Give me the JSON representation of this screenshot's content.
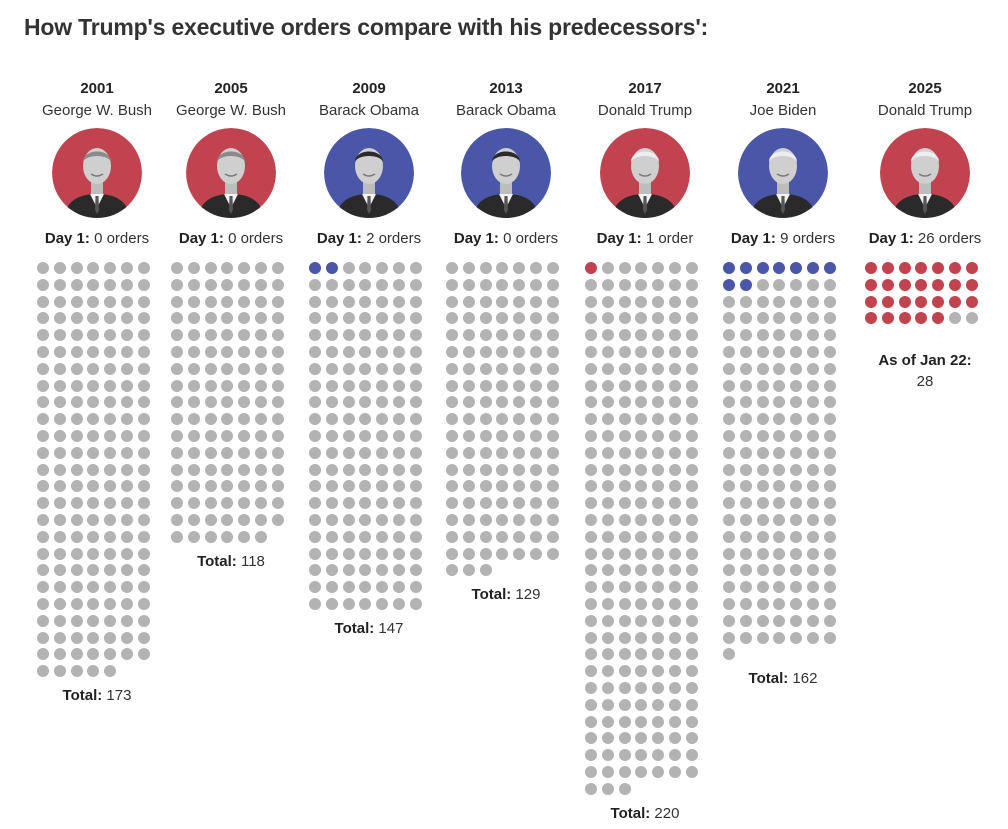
{
  "title": "How Trump's executive orders compare with his predecessors':",
  "chart_data": {
    "type": "waffle",
    "title": "How Trump's executive orders compare with his predecessors':",
    "columns_per_row": 7,
    "unit": "executive orders",
    "colors": {
      "republican": "#c1434f",
      "democrat": "#4a56a8",
      "other": "#b3b3b3"
    },
    "series": [
      {
        "year": "2001",
        "president": "George W. Bush",
        "party": "republican",
        "day1_label": "Day 1:",
        "day1_text": "0 orders",
        "day1": 0,
        "total_label": "Total:",
        "total": 173,
        "total_text": "173"
      },
      {
        "year": "2005",
        "president": "George W. Bush",
        "party": "republican",
        "day1_label": "Day 1:",
        "day1_text": "0 orders",
        "day1": 0,
        "total_label": "Total:",
        "total": 118,
        "total_text": "118"
      },
      {
        "year": "2009",
        "president": "Barack  Obama",
        "party": "democrat",
        "day1_label": "Day 1:",
        "day1_text": "2 orders",
        "day1": 2,
        "total_label": "Total:",
        "total": 147,
        "total_text": "147"
      },
      {
        "year": "2013",
        "president": "Barack  Obama",
        "party": "democrat",
        "day1_label": "Day 1:",
        "day1_text": "0 orders",
        "day1": 0,
        "total_label": "Total:",
        "total": 129,
        "total_text": "129"
      },
      {
        "year": "2017",
        "president": "Donald Trump",
        "party": "republican",
        "day1_label": "Day 1:",
        "day1_text": "1 order",
        "day1": 1,
        "total_label": "Total:",
        "total": 220,
        "total_text": "220"
      },
      {
        "year": "2021",
        "president": "Joe Biden",
        "party": "democrat",
        "day1_label": "Day 1:",
        "day1_text": "9 orders",
        "day1": 9,
        "total_label": "Total:",
        "total": 162,
        "total_text": "162"
      },
      {
        "year": "2025",
        "president": "Donald Trump",
        "party": "republican",
        "day1_label": "Day 1:",
        "day1_text": "26 orders",
        "day1": 26,
        "total_label": "As of Jan 22:",
        "total": 28,
        "total_text": "28",
        "as_of": true
      }
    ]
  }
}
